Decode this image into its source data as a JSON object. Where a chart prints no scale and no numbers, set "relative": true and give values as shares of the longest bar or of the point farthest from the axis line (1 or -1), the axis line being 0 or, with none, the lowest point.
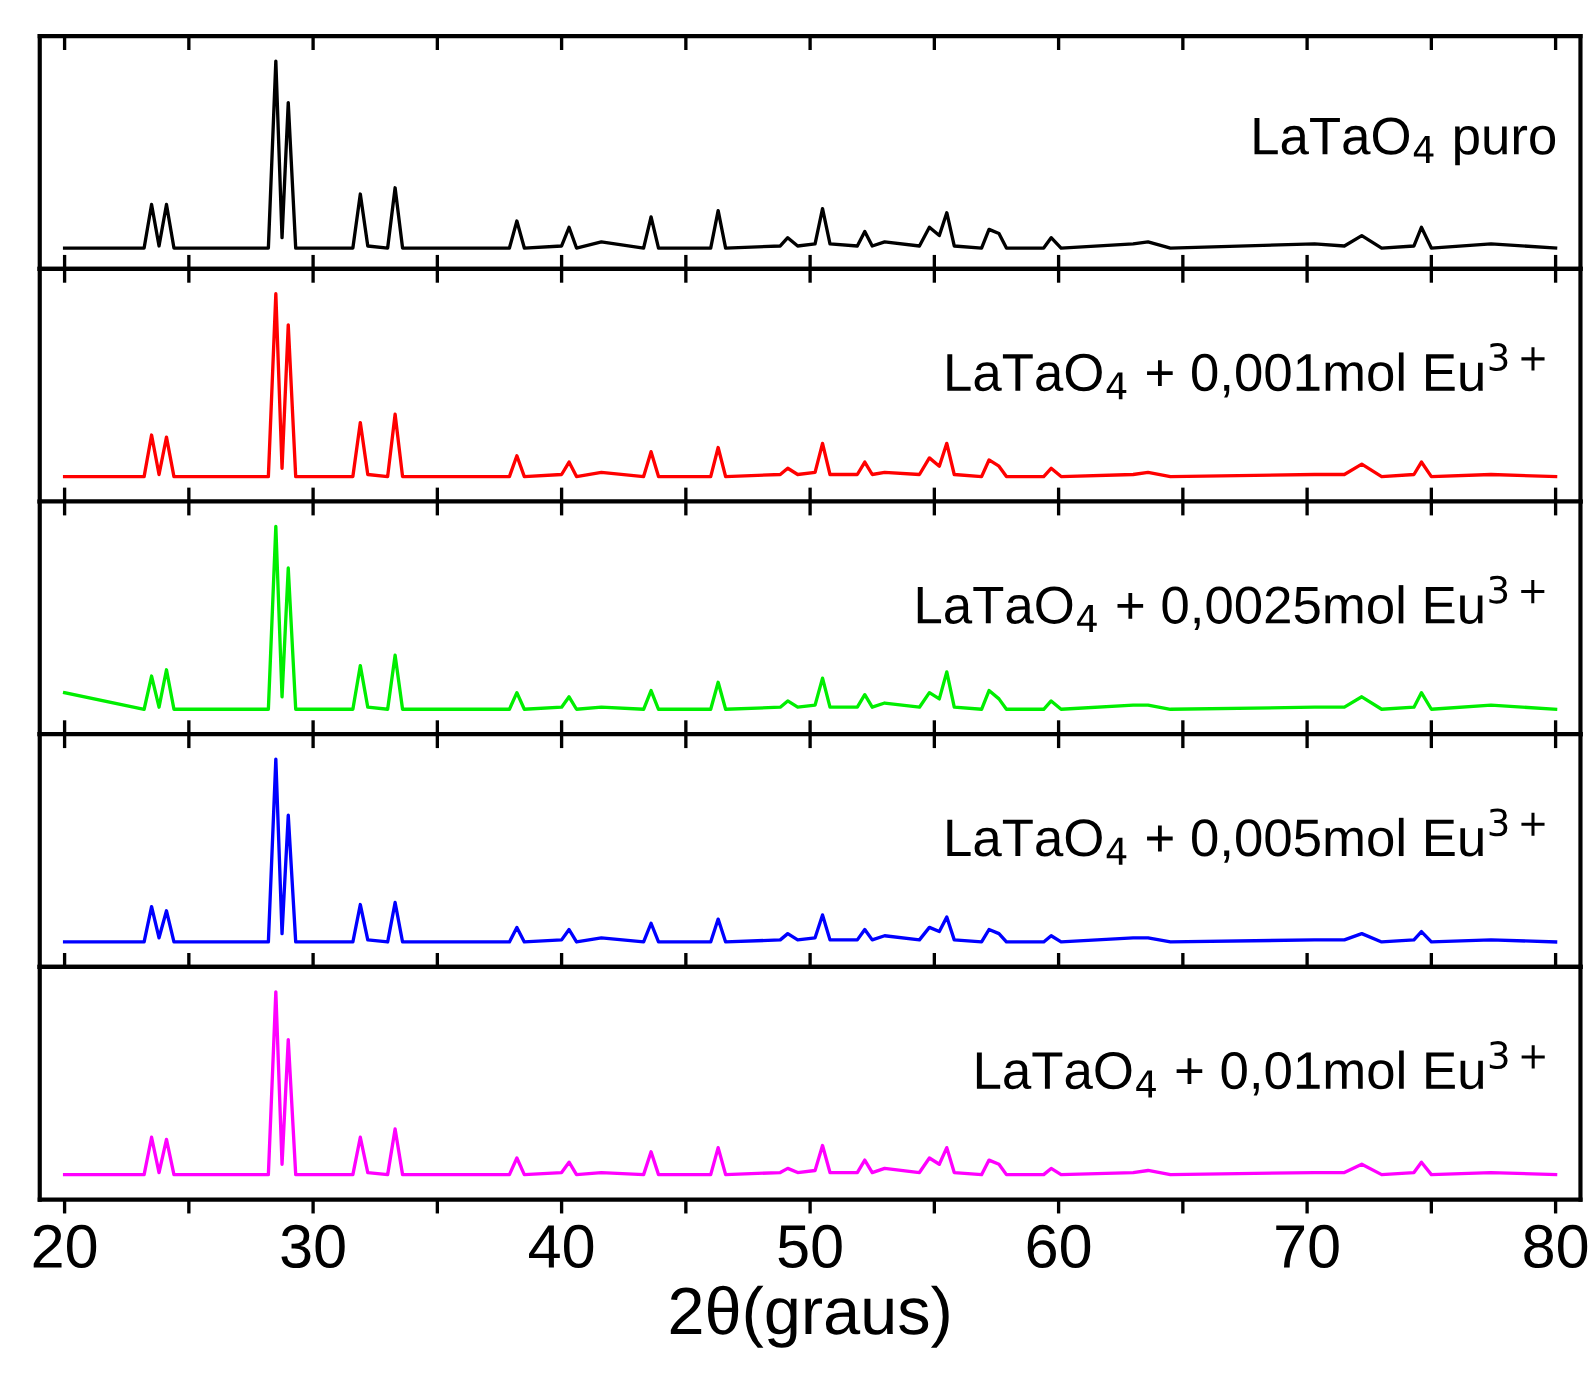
{
  "chart_data": [
    {
      "type": "line",
      "relative": true,
      "tick_labels": false,
      "xlim": [
        19,
        81
      ],
      "xticks": [
        20,
        {
          "value": 25,
          "label": null
        },
        30,
        {
          "value": 35,
          "label": null
        },
        40,
        {
          "value": 45,
          "label": null
        },
        50,
        {
          "value": 55,
          "label": null
        },
        60,
        {
          "value": 65,
          "label": null
        },
        70,
        {
          "value": 75,
          "label": null
        },
        80
      ],
      "x": [
        20,
        23.2,
        23.5,
        23.8,
        24.1,
        24.4,
        28.2,
        28.5,
        28.75,
        29.0,
        29.3,
        31.6,
        31.9,
        32.2,
        33.0,
        33.3,
        33.6,
        37.9,
        38.2,
        38.5,
        40.0,
        40.3,
        40.6,
        41.6,
        43.3,
        43.6,
        43.9,
        46.0,
        46.3,
        46.6,
        48.8,
        49.1,
        49.5,
        50.2,
        50.5,
        50.8,
        51.9,
        52.2,
        52.5,
        53.0,
        54.4,
        54.8,
        55.2,
        55.5,
        55.8,
        56.9,
        57.2,
        57.6,
        57.9,
        59.4,
        59.7,
        60.1,
        63.0,
        63.6,
        64.5,
        70.3,
        71.5,
        72.2,
        73.0,
        74.3,
        74.6,
        75.0,
        77.4,
        80
      ],
      "series": [
        {
          "name": "LaTaO$_{4}$ puro",
          "color": "#000000",
          "values": [
            0.1,
            0.1,
            0.31,
            0.11,
            0.31,
            0.1,
            0.1,
            1,
            0.15,
            0.8,
            0.1,
            0.1,
            0.36,
            0.11,
            0.1,
            0.39,
            0.1,
            0.1,
            0.23,
            0.1,
            0.11,
            0.2,
            0.1,
            0.13,
            0.1,
            0.25,
            0.1,
            0.1,
            0.28,
            0.1,
            0.11,
            0.15,
            0.11,
            0.12,
            0.29,
            0.12,
            0.11,
            0.18,
            0.11,
            0.13,
            0.11,
            0.2,
            0.16,
            0.27,
            0.11,
            0.1,
            0.19,
            0.17,
            0.1,
            0.1,
            0.15,
            0.1,
            0.12,
            0.13,
            0.1,
            0.12,
            0.11,
            0.16,
            0.1,
            0.11,
            0.2,
            0.1,
            0.12,
            0.1
          ]
        }
      ]
    },
    {
      "type": "line",
      "relative": true,
      "tick_labels": false,
      "xlim": [
        19,
        81
      ],
      "xticks": [
        20,
        {
          "value": 25,
          "label": null
        },
        30,
        {
          "value": 35,
          "label": null
        },
        40,
        {
          "value": 45,
          "label": null
        },
        50,
        {
          "value": 55,
          "label": null
        },
        60,
        {
          "value": 65,
          "label": null
        },
        70,
        {
          "value": 75,
          "label": null
        },
        80
      ],
      "x": [
        20,
        23.2,
        23.5,
        23.8,
        24.1,
        24.4,
        28.2,
        28.5,
        28.75,
        29.0,
        29.3,
        31.6,
        31.9,
        32.2,
        33.0,
        33.3,
        33.6,
        37.9,
        38.2,
        38.5,
        40.0,
        40.3,
        40.6,
        41.6,
        43.3,
        43.6,
        43.9,
        46.0,
        46.3,
        46.6,
        48.8,
        49.1,
        49.5,
        50.2,
        50.5,
        50.8,
        51.9,
        52.2,
        52.5,
        53.0,
        54.4,
        54.8,
        55.2,
        55.5,
        55.8,
        56.9,
        57.2,
        57.6,
        57.9,
        59.4,
        59.7,
        60.1,
        63.0,
        63.6,
        64.5,
        70.3,
        71.5,
        72.2,
        73.0,
        74.3,
        74.6,
        75.0,
        77.4,
        80
      ],
      "series": [
        {
          "name": "LaTaO$_{4}$ + 0,001mol Eu$^{3+}$",
          "color": "#ff0000",
          "values": [
            0.12,
            0.12,
            0.32,
            0.13,
            0.31,
            0.12,
            0.12,
            1,
            0.16,
            0.85,
            0.12,
            0.12,
            0.38,
            0.13,
            0.12,
            0.42,
            0.12,
            0.12,
            0.22,
            0.12,
            0.13,
            0.19,
            0.12,
            0.14,
            0.12,
            0.24,
            0.12,
            0.12,
            0.26,
            0.12,
            0.13,
            0.16,
            0.13,
            0.14,
            0.28,
            0.13,
            0.13,
            0.19,
            0.13,
            0.14,
            0.13,
            0.21,
            0.17,
            0.28,
            0.13,
            0.12,
            0.2,
            0.17,
            0.12,
            0.12,
            0.16,
            0.12,
            0.13,
            0.14,
            0.12,
            0.13,
            0.13,
            0.18,
            0.12,
            0.13,
            0.19,
            0.12,
            0.13,
            0.12
          ]
        }
      ]
    },
    {
      "type": "line",
      "relative": true,
      "tick_labels": false,
      "xlim": [
        19,
        81
      ],
      "xticks": [
        20,
        {
          "value": 25,
          "label": null
        },
        30,
        {
          "value": 35,
          "label": null
        },
        40,
        {
          "value": 45,
          "label": null
        },
        50,
        {
          "value": 55,
          "label": null
        },
        60,
        {
          "value": 65,
          "label": null
        },
        70,
        {
          "value": 75,
          "label": null
        },
        80
      ],
      "x": [
        20,
        23.2,
        23.5,
        23.8,
        24.1,
        24.4,
        28.2,
        28.5,
        28.75,
        29.0,
        29.3,
        31.6,
        31.9,
        32.2,
        33.0,
        33.3,
        33.6,
        37.9,
        38.2,
        38.5,
        40.0,
        40.3,
        40.6,
        41.6,
        43.3,
        43.6,
        43.9,
        46.0,
        46.3,
        46.6,
        48.8,
        49.1,
        49.5,
        50.2,
        50.5,
        50.8,
        51.9,
        52.2,
        52.5,
        53.0,
        54.4,
        54.8,
        55.2,
        55.5,
        55.8,
        56.9,
        57.2,
        57.6,
        57.9,
        59.4,
        59.7,
        60.1,
        63.0,
        63.6,
        64.5,
        70.3,
        71.5,
        72.2,
        73.0,
        74.3,
        74.6,
        75.0,
        77.4,
        80
      ],
      "series": [
        {
          "name": "LaTaO$_{4}$ + 0,0025mol Eu$^{3+}$",
          "color": "#00ee00",
          "values": [
            0.2,
            0.12,
            0.28,
            0.13,
            0.31,
            0.12,
            0.12,
            1,
            0.18,
            0.8,
            0.12,
            0.12,
            0.33,
            0.13,
            0.12,
            0.38,
            0.12,
            0.12,
            0.2,
            0.12,
            0.13,
            0.18,
            0.12,
            0.13,
            0.12,
            0.21,
            0.12,
            0.12,
            0.25,
            0.12,
            0.13,
            0.16,
            0.13,
            0.14,
            0.27,
            0.13,
            0.13,
            0.19,
            0.13,
            0.15,
            0.13,
            0.2,
            0.17,
            0.3,
            0.13,
            0.12,
            0.21,
            0.17,
            0.12,
            0.12,
            0.16,
            0.12,
            0.14,
            0.14,
            0.12,
            0.13,
            0.13,
            0.18,
            0.12,
            0.13,
            0.2,
            0.12,
            0.14,
            0.12
          ]
        }
      ]
    },
    {
      "type": "line",
      "relative": true,
      "tick_labels": false,
      "xlim": [
        19,
        81
      ],
      "xticks": [
        20,
        {
          "value": 25,
          "label": null
        },
        30,
        {
          "value": 35,
          "label": null
        },
        40,
        {
          "value": 45,
          "label": null
        },
        50,
        {
          "value": 55,
          "label": null
        },
        60,
        {
          "value": 65,
          "label": null
        },
        70,
        {
          "value": 75,
          "label": null
        },
        80
      ],
      "x": [
        20,
        23.2,
        23.5,
        23.8,
        24.1,
        24.4,
        28.2,
        28.5,
        28.75,
        29.0,
        29.3,
        31.6,
        31.9,
        32.2,
        33.0,
        33.3,
        33.6,
        37.9,
        38.2,
        38.5,
        40.0,
        40.3,
        40.6,
        41.6,
        43.3,
        43.6,
        43.9,
        46.0,
        46.3,
        46.6,
        48.8,
        49.1,
        49.5,
        50.2,
        50.5,
        50.8,
        51.9,
        52.2,
        52.5,
        53.0,
        54.4,
        54.8,
        55.2,
        55.5,
        55.8,
        56.9,
        57.2,
        57.6,
        57.9,
        59.4,
        59.7,
        60.1,
        63.0,
        63.6,
        64.5,
        70.3,
        71.5,
        72.2,
        73.0,
        74.3,
        74.6,
        75.0,
        77.4,
        80
      ],
      "series": [
        {
          "name": "LaTaO$_{4}$ + 0,005mol Eu$^{3+}$",
          "color": "#0000ff",
          "values": [
            0.12,
            0.12,
            0.29,
            0.14,
            0.27,
            0.12,
            0.12,
            1,
            0.16,
            0.73,
            0.12,
            0.12,
            0.3,
            0.13,
            0.12,
            0.31,
            0.12,
            0.12,
            0.19,
            0.12,
            0.13,
            0.18,
            0.12,
            0.14,
            0.12,
            0.21,
            0.12,
            0.12,
            0.23,
            0.12,
            0.13,
            0.16,
            0.13,
            0.14,
            0.25,
            0.13,
            0.13,
            0.18,
            0.13,
            0.15,
            0.13,
            0.19,
            0.17,
            0.24,
            0.13,
            0.12,
            0.18,
            0.16,
            0.12,
            0.12,
            0.15,
            0.12,
            0.14,
            0.14,
            0.12,
            0.13,
            0.13,
            0.16,
            0.12,
            0.13,
            0.17,
            0.12,
            0.13,
            0.12
          ]
        }
      ]
    },
    {
      "type": "line",
      "relative": true,
      "tick_labels": "x",
      "xlabel": "2θ(graus)",
      "xlim": [
        19,
        81
      ],
      "xticks": [
        20,
        {
          "value": 25,
          "label": null
        },
        30,
        {
          "value": 35,
          "label": null
        },
        40,
        {
          "value": 45,
          "label": null
        },
        50,
        {
          "value": 55,
          "label": null
        },
        60,
        {
          "value": 65,
          "label": null
        },
        70,
        {
          "value": 75,
          "label": null
        },
        80
      ],
      "x": [
        20,
        23.2,
        23.5,
        23.8,
        24.1,
        24.4,
        28.2,
        28.5,
        28.75,
        29.0,
        29.3,
        31.6,
        31.9,
        32.2,
        33.0,
        33.3,
        33.6,
        37.9,
        38.2,
        38.5,
        40.0,
        40.3,
        40.6,
        41.6,
        43.3,
        43.6,
        43.9,
        46.0,
        46.3,
        46.6,
        48.8,
        49.1,
        49.5,
        50.2,
        50.5,
        50.8,
        51.9,
        52.2,
        52.5,
        53.0,
        54.4,
        54.8,
        55.2,
        55.5,
        55.8,
        56.9,
        57.2,
        57.6,
        57.9,
        59.4,
        59.7,
        60.1,
        63.0,
        63.6,
        64.5,
        70.3,
        71.5,
        72.2,
        73.0,
        74.3,
        74.6,
        75.0,
        77.4,
        80
      ],
      "series": [
        {
          "name": "LaTaO$_{4}$ + 0,01mol Eu$^{3+}$",
          "color": "#ff00ff",
          "values": [
            0.12,
            0.12,
            0.3,
            0.13,
            0.29,
            0.12,
            0.12,
            1,
            0.17,
            0.77,
            0.12,
            0.12,
            0.3,
            0.13,
            0.12,
            0.34,
            0.12,
            0.12,
            0.2,
            0.12,
            0.13,
            0.18,
            0.12,
            0.13,
            0.12,
            0.23,
            0.12,
            0.12,
            0.25,
            0.12,
            0.13,
            0.15,
            0.13,
            0.14,
            0.26,
            0.13,
            0.13,
            0.19,
            0.13,
            0.15,
            0.13,
            0.2,
            0.17,
            0.25,
            0.13,
            0.12,
            0.19,
            0.17,
            0.12,
            0.12,
            0.15,
            0.12,
            0.13,
            0.14,
            0.12,
            0.13,
            0.13,
            0.17,
            0.12,
            0.13,
            0.18,
            0.12,
            0.13,
            0.12
          ]
        }
      ]
    }
  ]
}
